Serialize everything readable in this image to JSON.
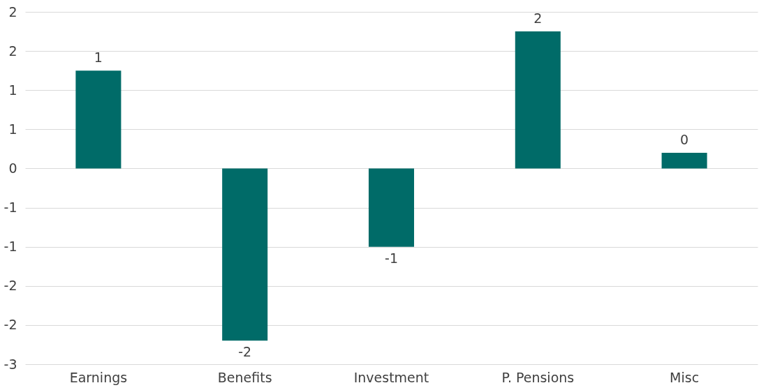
{
  "chart_data": {
    "type": "bar",
    "categories": [
      "Earnings",
      "Benefits",
      "Investment",
      "P. Pensions",
      "Misc"
    ],
    "values": [
      1.25,
      -2.2,
      -1.0,
      1.75,
      0.2
    ],
    "value_labels": [
      "1",
      "-2",
      "-1",
      "2",
      "0"
    ],
    "color": "#006b68",
    "ylim": [
      -2.5,
      2
    ],
    "yticks": [
      2,
      {
        "value": 1.5,
        "label": "2"
      },
      1,
      {
        "value": 0.5,
        "label": "1"
      },
      0,
      {
        "value": -0.5,
        "label": "-1"
      },
      -1,
      {
        "value": -1.5,
        "label": "-2"
      },
      -2,
      {
        "value": -2.5,
        "label": "-3"
      }
    ],
    "grid": true
  }
}
